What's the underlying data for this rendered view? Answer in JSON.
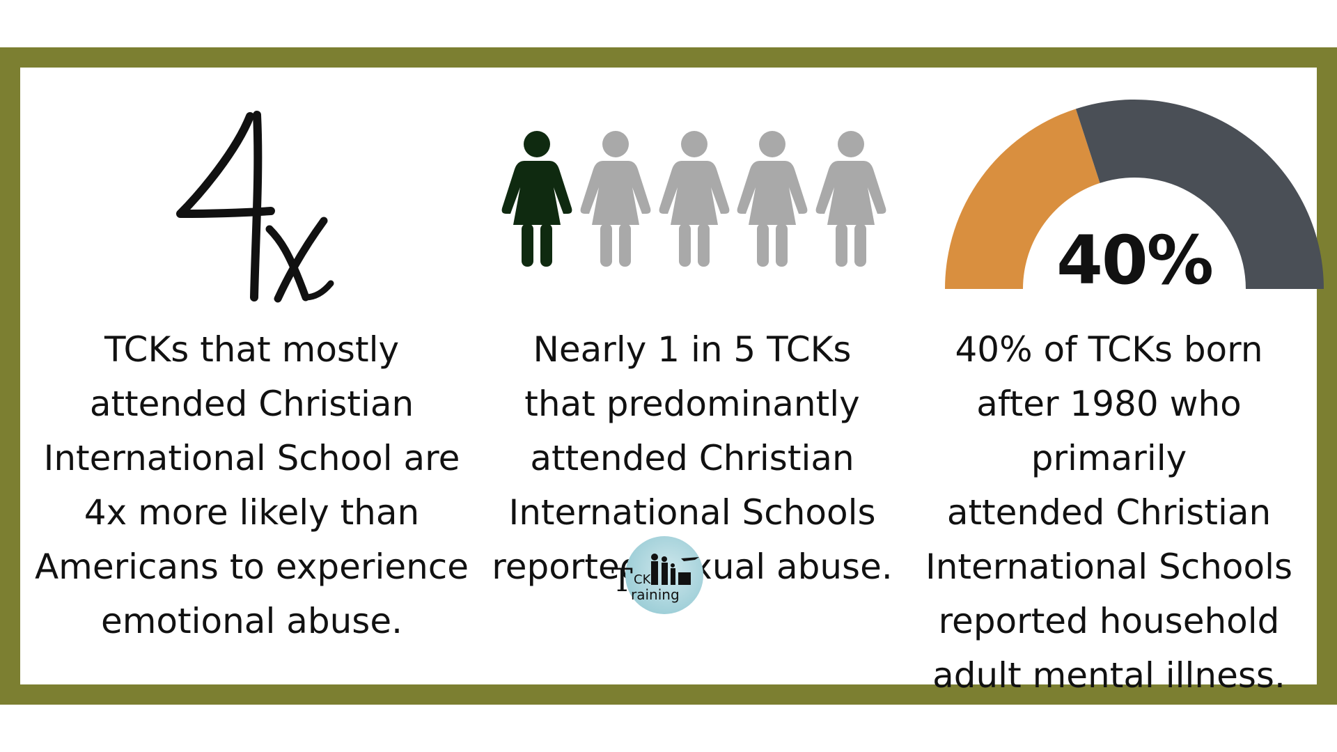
{
  "stat1": {
    "headline": "4x",
    "caption": "TCKs that mostly\nattended Christian\nInternational School are\n4x more likely than\nAmericans to experience\nemotional abuse."
  },
  "stat2": {
    "figures_total": 5,
    "figures_highlighted": 1,
    "highlight_color": "#0f2a10",
    "muted_color": "#a9a9a9",
    "caption": "Nearly 1 in 5 TCKs\nthat predominantly\nattended Christian\nInternational Schools\nreported sexual abuse."
  },
  "stat3": {
    "gauge_percent": 40,
    "gauge_label": "40%",
    "filled_color": "#d98f3f",
    "remaining_color": "#4a4f56",
    "caption": "40% of TCKs born\nafter 1980 who primarily\nattended Christian\nInternational Schools\nreported household\nadult mental illness."
  },
  "logo": {
    "letter_t": "T",
    "letters_ck": "CK",
    "word_training": "raining"
  },
  "colors": {
    "frame": "#7c7f31",
    "panel": "#ffffff",
    "text": "#111111"
  }
}
